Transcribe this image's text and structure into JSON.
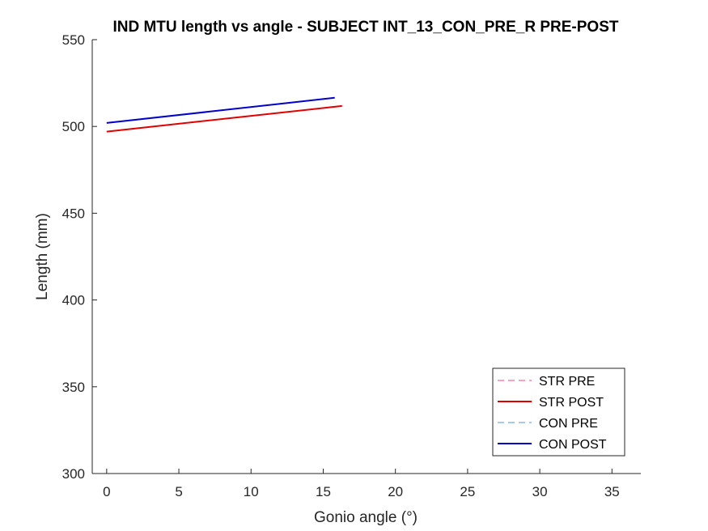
{
  "figure": {
    "background": "#ffffff"
  },
  "chart_data": {
    "type": "line",
    "title": "IND MTU length vs angle - SUBJECT INT_13_CON_PRE_R PRE-POST",
    "xlabel": "Gonio angle (°)",
    "ylabel": "Length (mm)",
    "xlim": [
      -1,
      37
    ],
    "ylim": [
      300,
      550
    ],
    "xticks": [
      0,
      5,
      10,
      15,
      20,
      25,
      30,
      35
    ],
    "yticks": [
      300,
      350,
      400,
      450,
      500,
      550
    ],
    "grid": false,
    "legend_position": "bottom-right",
    "series": [
      {
        "name": "STR PRE",
        "color": "#f4a6c0",
        "dash": "dashed",
        "x": [],
        "y": []
      },
      {
        "name": "STR POST",
        "color": "#e00000",
        "dash": "solid",
        "x": [
          0,
          16.3
        ],
        "y": [
          497,
          511.8
        ]
      },
      {
        "name": "CON PRE",
        "color": "#a9c8f0",
        "dash": "dashed",
        "x": [],
        "y": []
      },
      {
        "name": "CON POST",
        "color": "#0000cc",
        "dash": "solid",
        "x": [
          0,
          15.8
        ],
        "y": [
          502,
          516.5
        ]
      }
    ]
  }
}
